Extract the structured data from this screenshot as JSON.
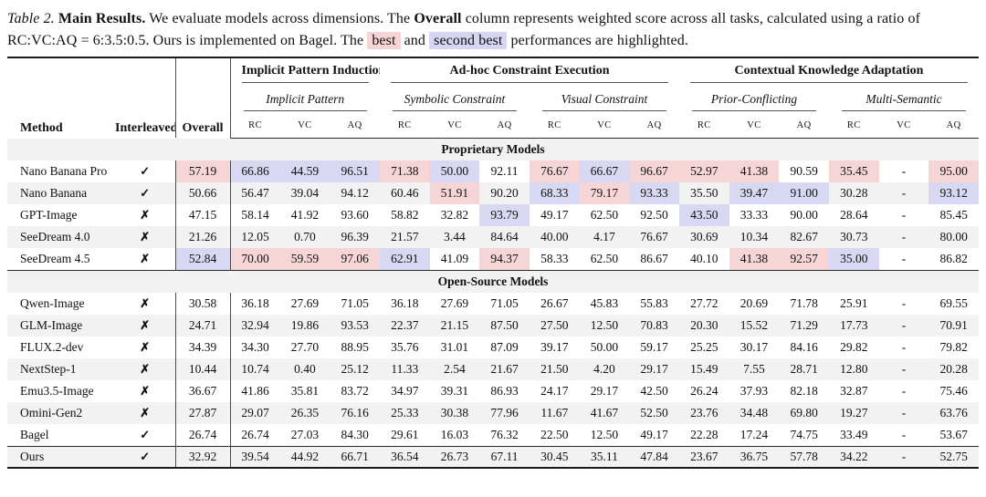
{
  "caption": {
    "label": "Table 2.",
    "title": "Main Results.",
    "body1": "We evaluate models across dimensions. The",
    "overall_word": "Overall",
    "body2": "column represents weighted score across all tasks, calculated using a ratio of RC:VC:AQ = 6:3.5:0.5. Ours is implemented on Bagel. The",
    "best_label": "best",
    "and_word": "and",
    "second_label": "second best",
    "body3": "performances are highlighted."
  },
  "colors": {
    "best_bg": "#f6d5d7",
    "second_bg": "#d8d8f3",
    "stripe_bg": "#f2f2f2"
  },
  "icons": {
    "check": "✓",
    "cross": "✗"
  },
  "table": {
    "fixed_headers": {
      "method": "Method",
      "interleaved": "Interleaved",
      "overall": "Overall"
    },
    "col_keys": [
      "RC",
      "VC",
      "AQ"
    ],
    "groups": [
      {
        "label": "Implicit Pattern Induction",
        "subgroups": [
          "Implicit Pattern"
        ]
      },
      {
        "label": "Ad-hoc Constraint Execution",
        "subgroups": [
          "Symbolic Constraint",
          "Visual Constraint"
        ]
      },
      {
        "label": "Contextual Knowledge Adaptation",
        "subgroups": [
          "Prior-Conflicting",
          "Multi-Semantic"
        ]
      }
    ],
    "sections": [
      {
        "header": "Proprietary Models",
        "rows": [
          {
            "method": "Nano Banana Pro",
            "interleaved": true,
            "values": [
              "57.19",
              "66.86",
              "44.59",
              "96.51",
              "71.38",
              "50.00",
              "92.11",
              "76.67",
              "66.67",
              "96.67",
              "52.97",
              "41.38",
              "90.59",
              "35.45",
              "-",
              "95.00"
            ],
            "hl": {
              "0": "b",
              "1": "s",
              "2": "s",
              "3": "s",
              "4": "b",
              "5": "s",
              "7": "b",
              "8": "s",
              "9": "b",
              "10": "b",
              "11": "b",
              "13": "b",
              "15": "b"
            }
          },
          {
            "method": "Nano Banana",
            "interleaved": true,
            "values": [
              "50.66",
              "56.47",
              "39.04",
              "94.12",
              "60.46",
              "51.91",
              "90.20",
              "68.33",
              "79.17",
              "93.33",
              "35.50",
              "39.47",
              "91.00",
              "30.28",
              "-",
              "93.12"
            ],
            "hl": {
              "5": "b",
              "7": "s",
              "8": "b",
              "9": "s",
              "11": "s",
              "12": "s",
              "15": "s"
            }
          },
          {
            "method": "GPT-Image",
            "interleaved": false,
            "values": [
              "47.15",
              "58.14",
              "41.92",
              "93.60",
              "58.82",
              "32.82",
              "93.79",
              "49.17",
              "62.50",
              "92.50",
              "43.50",
              "33.33",
              "90.00",
              "28.64",
              "-",
              "85.45"
            ],
            "hl": {
              "6": "s",
              "10": "s"
            }
          },
          {
            "method": "SeeDream 4.0",
            "interleaved": false,
            "values": [
              "21.26",
              "12.05",
              "0.70",
              "96.39",
              "21.57",
              "3.44",
              "84.64",
              "40.00",
              "4.17",
              "76.67",
              "30.69",
              "10.34",
              "82.67",
              "30.73",
              "-",
              "80.00"
            ],
            "hl": {}
          },
          {
            "method": "SeeDream 4.5",
            "interleaved": false,
            "values": [
              "52.84",
              "70.00",
              "59.59",
              "97.06",
              "62.91",
              "41.09",
              "94.37",
              "58.33",
              "62.50",
              "86.67",
              "40.10",
              "41.38",
              "92.57",
              "35.00",
              "-",
              "86.82"
            ],
            "hl": {
              "0": "s",
              "1": "b",
              "2": "b",
              "3": "b",
              "4": "s",
              "6": "b",
              "11": "b",
              "12": "b",
              "13": "s"
            }
          }
        ]
      },
      {
        "header": "Open-Source Models",
        "rows": [
          {
            "method": "Qwen-Image",
            "interleaved": false,
            "values": [
              "30.58",
              "36.18",
              "27.69",
              "71.05",
              "36.18",
              "27.69",
              "71.05",
              "26.67",
              "45.83",
              "55.83",
              "27.72",
              "20.69",
              "71.78",
              "25.91",
              "-",
              "69.55"
            ],
            "hl": {}
          },
          {
            "method": "GLM-Image",
            "interleaved": false,
            "values": [
              "24.71",
              "32.94",
              "19.86",
              "93.53",
              "22.37",
              "21.15",
              "87.50",
              "27.50",
              "12.50",
              "70.83",
              "20.30",
              "15.52",
              "71.29",
              "17.73",
              "-",
              "70.91"
            ],
            "hl": {}
          },
          {
            "method": "FLUX.2-dev",
            "interleaved": false,
            "values": [
              "34.39",
              "34.30",
              "27.70",
              "88.95",
              "35.76",
              "31.01",
              "87.09",
              "39.17",
              "50.00",
              "59.17",
              "25.25",
              "30.17",
              "84.16",
              "29.82",
              "-",
              "79.82"
            ],
            "hl": {}
          },
          {
            "method": "NextStep-1",
            "interleaved": false,
            "values": [
              "10.44",
              "10.74",
              "0.40",
              "25.12",
              "11.33",
              "2.54",
              "21.67",
              "21.50",
              "4.20",
              "29.17",
              "15.49",
              "7.55",
              "28.71",
              "12.80",
              "-",
              "20.28"
            ],
            "hl": {}
          },
          {
            "method": "Emu3.5-Image",
            "interleaved": false,
            "values": [
              "36.67",
              "41.86",
              "35.81",
              "83.72",
              "34.97",
              "39.31",
              "86.93",
              "24.17",
              "29.17",
              "42.50",
              "26.24",
              "37.93",
              "82.18",
              "32.87",
              "-",
              "75.46"
            ],
            "hl": {}
          },
          {
            "method": "Omini-Gen2",
            "interleaved": false,
            "values": [
              "27.87",
              "29.07",
              "26.35",
              "76.16",
              "25.33",
              "30.38",
              "77.96",
              "11.67",
              "41.67",
              "52.50",
              "23.76",
              "34.48",
              "69.80",
              "19.27",
              "-",
              "63.76"
            ],
            "hl": {}
          },
          {
            "method": "Bagel",
            "interleaved": true,
            "values": [
              "26.74",
              "26.74",
              "27.03",
              "84.30",
              "29.61",
              "16.03",
              "76.32",
              "22.50",
              "12.50",
              "49.17",
              "22.28",
              "17.24",
              "74.75",
              "33.49",
              "-",
              "53.67"
            ],
            "hl": {}
          }
        ]
      },
      {
        "header": null,
        "rows": [
          {
            "method": "Ours",
            "interleaved": true,
            "values": [
              "32.92",
              "39.54",
              "44.92",
              "66.71",
              "36.54",
              "26.73",
              "67.11",
              "30.45",
              "35.11",
              "47.84",
              "23.67",
              "36.75",
              "57.78",
              "34.22",
              "-",
              "52.75"
            ],
            "hl": {}
          }
        ]
      }
    ]
  }
}
